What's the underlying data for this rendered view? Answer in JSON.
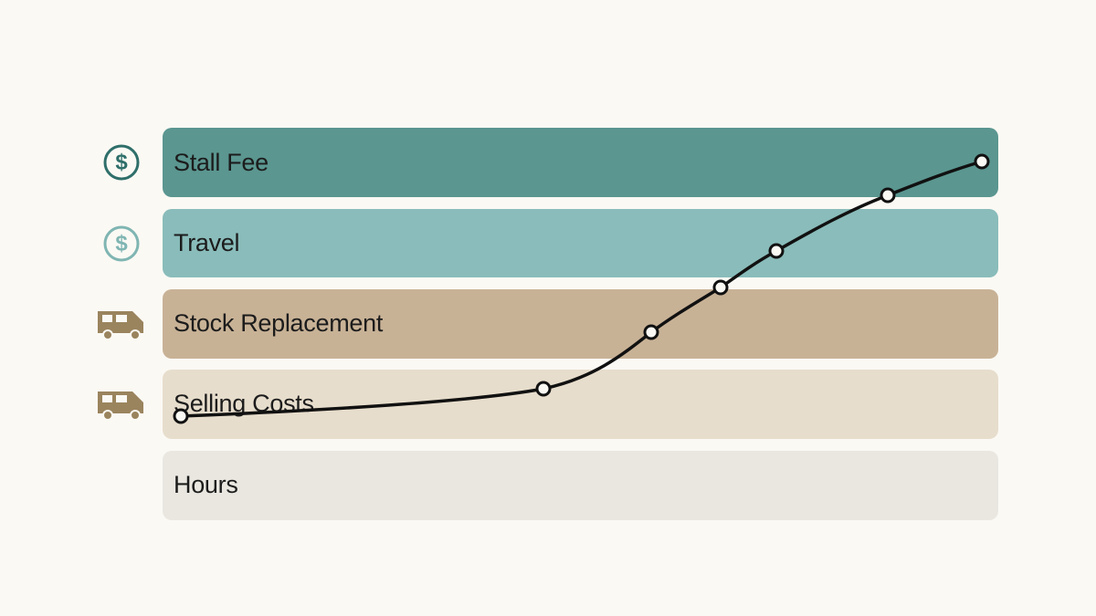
{
  "rows": [
    {
      "label": "Stall Fee"
    },
    {
      "label": "Travel"
    },
    {
      "label": "Stock Replacement"
    },
    {
      "label": "Selling Costs"
    },
    {
      "label": "Hours"
    }
  ]
}
